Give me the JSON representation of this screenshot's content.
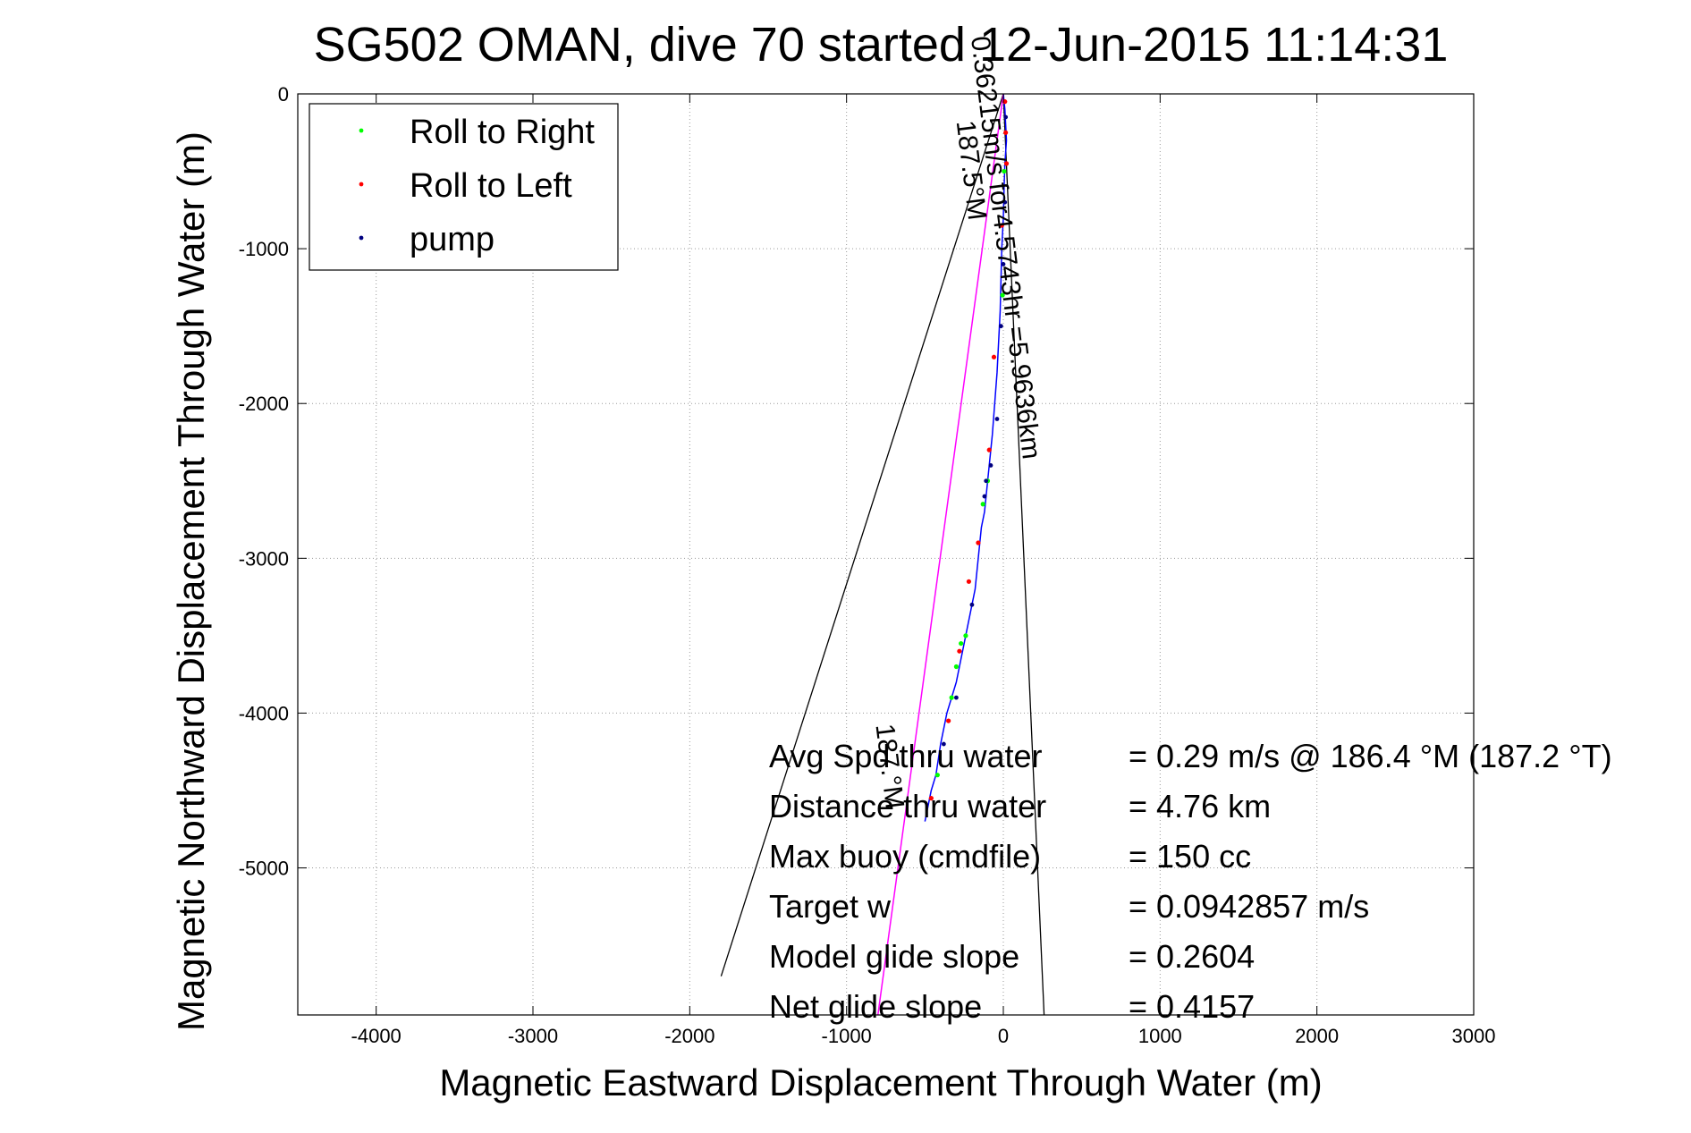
{
  "chart_data": {
    "type": "line",
    "title": "SG502 OMAN, dive 70 started 12-Jun-2015 11:14:31",
    "xlabel": "Magnetic Eastward Displacement Through Water (m)",
    "ylabel": "Magnetic Northward Displacement Through Water (m)",
    "xlim": [
      -4500,
      3000
    ],
    "ylim": [
      -5950,
      0
    ],
    "xticks": [
      -4000,
      -3000,
      -2000,
      -1000,
      0,
      1000,
      2000,
      3000
    ],
    "yticks": [
      0,
      -1000,
      -2000,
      -3000,
      -4000,
      -5000
    ],
    "grid": true,
    "legend_placement": "top-left",
    "legend": [
      {
        "label": "Roll to Right",
        "color": "#00ff00"
      },
      {
        "label": "Roll to Left",
        "color": "#ff0000"
      },
      {
        "label": "pump",
        "color": "#000080"
      }
    ],
    "series": [
      {
        "color": "#0000ff",
        "x": [
          0,
          10,
          15,
          20,
          10,
          5,
          0,
          -10,
          -15,
          -20,
          -30,
          -40,
          -55,
          -70,
          -80,
          -90,
          -100,
          -110,
          -120,
          -140,
          -160,
          -180,
          -200,
          -220,
          -240,
          -260,
          -280,
          -300,
          -330,
          -360,
          -380,
          -400,
          -430,
          -460,
          -480,
          -500
        ],
        "y": [
          0,
          -100,
          -200,
          -300,
          -450,
          -600,
          -800,
          -1000,
          -1200,
          -1400,
          -1600,
          -1800,
          -2000,
          -2200,
          -2300,
          -2400,
          -2500,
          -2600,
          -2700,
          -2800,
          -3000,
          -3200,
          -3300,
          -3400,
          -3500,
          -3600,
          -3700,
          -3800,
          -3900,
          -4000,
          -4100,
          -4200,
          -4400,
          -4500,
          -4600,
          -4700
        ]
      },
      {
        "color": "#ff00ff",
        "x": [
          0,
          -800
        ],
        "y": [
          0,
          -5950
        ]
      }
    ],
    "pump_markers": {
      "color": "#000080",
      "x": [
        15,
        10,
        0,
        -15,
        -40,
        -80,
        -110,
        -120,
        -200,
        -300,
        -380
      ],
      "y": [
        -150,
        -700,
        -1100,
        -1500,
        -2100,
        -2400,
        -2500,
        -2600,
        -3300,
        -3900,
        -4200
      ]
    },
    "roll_right_markers": {
      "color": "#00ff00",
      "x": [
        5,
        -5,
        -100,
        -130,
        -240,
        -270,
        -300,
        -330,
        -420
      ],
      "y": [
        -500,
        -1300,
        -2500,
        -2650,
        -3500,
        -3550,
        -3700,
        -3900,
        -4400
      ]
    },
    "roll_left_markers": {
      "color": "#ff0000",
      "x": [
        10,
        15,
        20,
        -10,
        -60,
        -90,
        -160,
        -220,
        -280,
        -350,
        -460
      ],
      "y": [
        -50,
        -250,
        -450,
        -850,
        -1700,
        -2300,
        -2900,
        -3150,
        -3600,
        -4050,
        -4550
      ]
    },
    "reference_lines": [
      {
        "color": "#000000",
        "x": [
          0,
          -1800
        ],
        "y": [
          0,
          -5700
        ]
      },
      {
        "color": "#000000",
        "x": [
          0,
          260
        ],
        "y": [
          0,
          -5950
        ]
      }
    ],
    "track_labels": [
      {
        "text": "0.36215m/s for4.5743hr =5.9636km",
        "x": -40,
        "y": -1000,
        "rotation": 83
      },
      {
        "text": "187.5°M",
        "x": -260,
        "y": -500,
        "rotation": 83
      },
      {
        "text": "187.°M",
        "x": -780,
        "y": -4350,
        "rotation": 83
      }
    ],
    "info_lines": [
      {
        "label": "Avg Spd thru water",
        "value": "=  0.29 m/s @ 186.4 °M (187.2 °T)"
      },
      {
        "label": "Distance thru water",
        "value": "=  4.76 km"
      },
      {
        "label": "Max buoy (cmdfile)",
        "value": "= 150 cc"
      },
      {
        "label": "Target w",
        "value": "= 0.0942857 m/s"
      },
      {
        "label": "Model glide slope",
        "value": "= 0.2604"
      },
      {
        "label": "Net glide slope",
        "value": "= 0.4157"
      }
    ]
  }
}
